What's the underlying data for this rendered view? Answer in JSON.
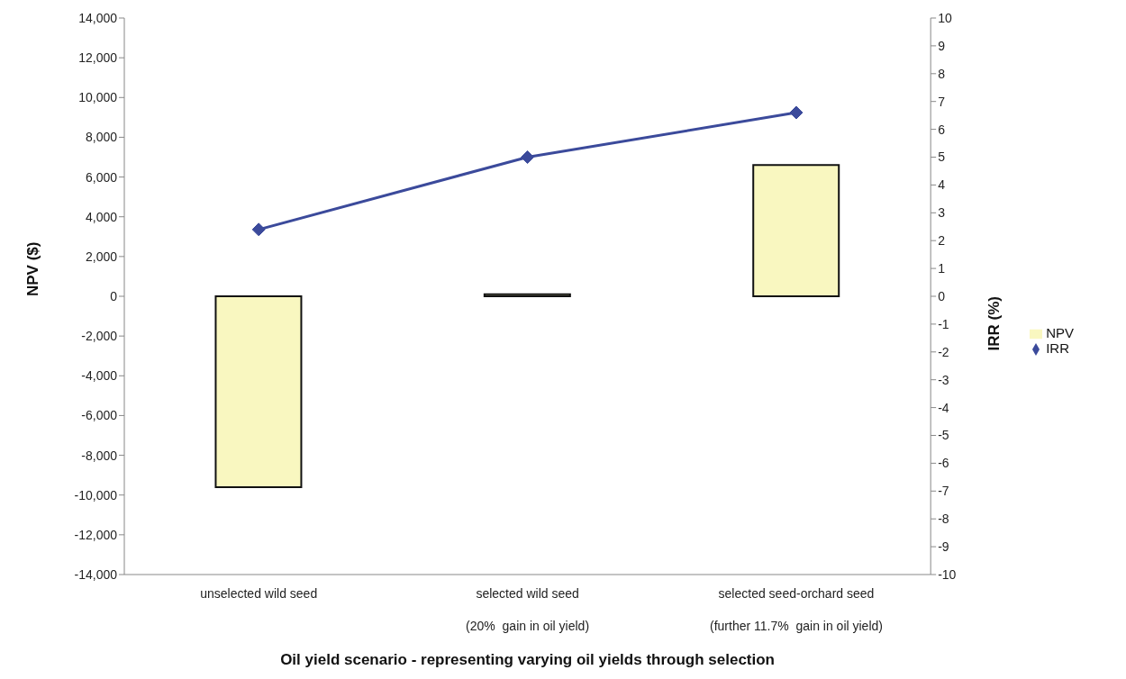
{
  "chart_data": {
    "type": "bar",
    "xlabel": "Oil yield scenario - representing varying oil yields through selection",
    "ylabel": "NPV ($)",
    "y2label": "IRR (%)",
    "categories": [
      "unselected wild seed",
      "selected wild seed\n(20%  gain in oil yield)",
      "selected seed-orchard seed\n(further 11.7%  gain in oil yield)"
    ],
    "series": [
      {
        "name": "NPV",
        "color": "#f9f7c0",
        "values": [
          -9600,
          100,
          6600
        ]
      },
      {
        "name": "IRR",
        "type": "line",
        "axis": "y2",
        "color": "#3b4a9b",
        "marker": "diamond",
        "values": [
          2.4,
          5.0,
          6.6
        ]
      }
    ],
    "ylim": [
      -14000,
      14000
    ],
    "yticks": [
      {
        "value": -14000,
        "label": "-14,000"
      },
      {
        "value": -12000,
        "label": "-12,000"
      },
      {
        "value": -10000,
        "label": "-10,000"
      },
      {
        "value": -8000,
        "label": "-8,000"
      },
      {
        "value": -6000,
        "label": "-6,000"
      },
      {
        "value": -4000,
        "label": "-4,000"
      },
      {
        "value": -2000,
        "label": "-2,000"
      },
      0,
      {
        "value": 2000,
        "label": "2,000"
      },
      {
        "value": 4000,
        "label": "4,000"
      },
      {
        "value": 6000,
        "label": "6,000"
      },
      {
        "value": 8000,
        "label": "8,000"
      },
      {
        "value": 10000,
        "label": "10,000"
      },
      {
        "value": 12000,
        "label": "12,000"
      },
      {
        "value": 14000,
        "label": "14,000"
      }
    ],
    "y2lim": [
      -10,
      10
    ],
    "y2ticks": [
      -10,
      -9,
      -8,
      -7,
      -6,
      -5,
      -4,
      -3,
      -2,
      -1,
      0,
      1,
      2,
      3,
      4,
      5,
      6,
      7,
      8,
      9,
      10
    ],
    "legend": "right",
    "grid": false
  }
}
